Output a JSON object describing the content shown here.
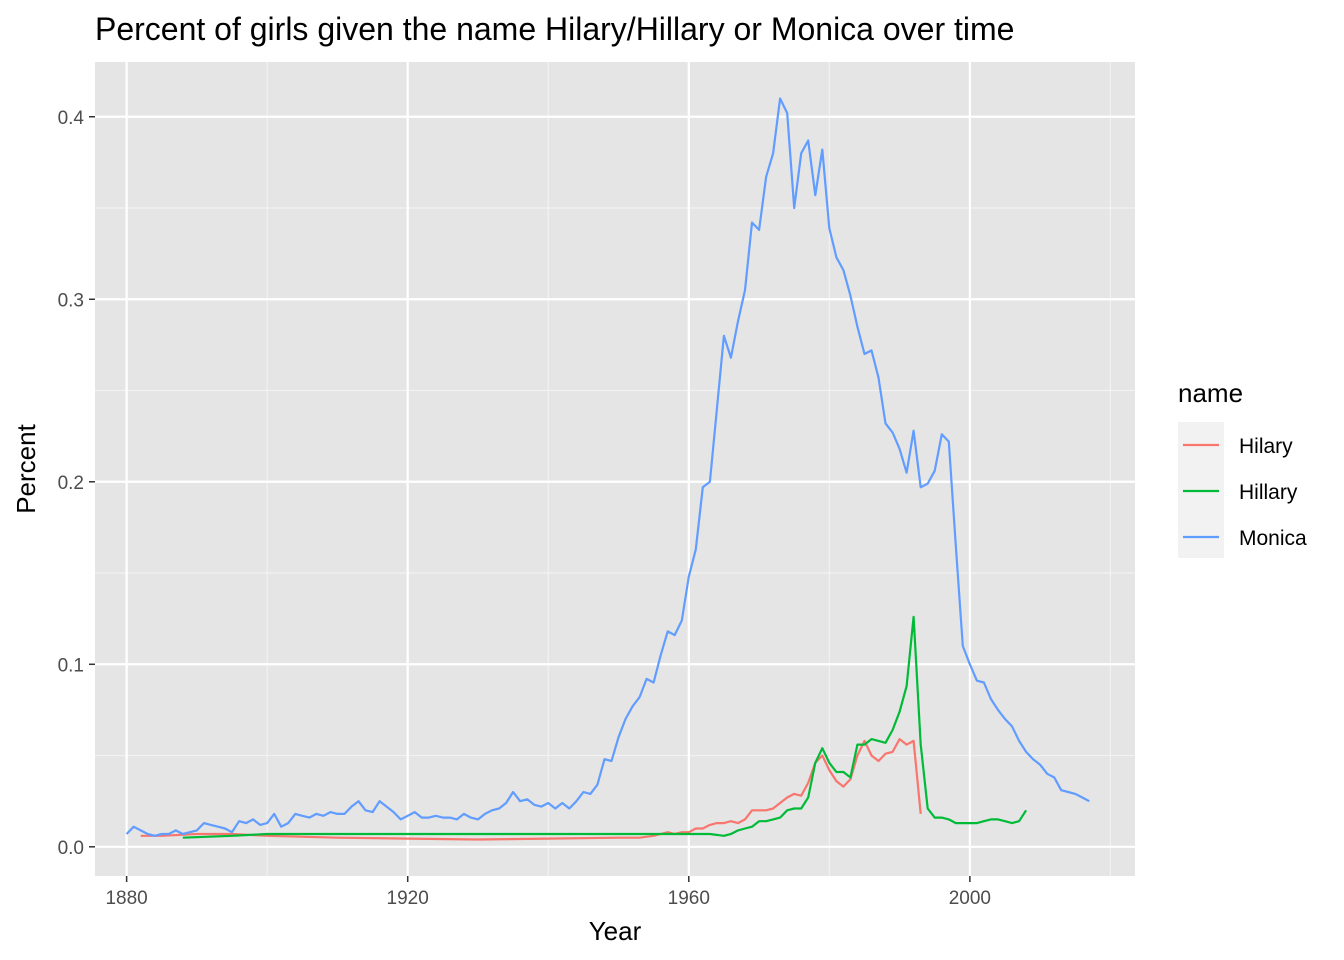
{
  "chart_data": {
    "type": "line",
    "title": "Percent of girls given the name Hilary/Hillary or Monica over time",
    "xlabel": "Year",
    "ylabel": "Percent",
    "xlim": [
      1875.5,
      2023.5
    ],
    "ylim": [
      -0.016,
      0.43
    ],
    "x_ticks": [
      1880,
      1920,
      1960,
      2000
    ],
    "x_tick_labels": [
      "1880",
      "1920",
      "1960",
      "2000"
    ],
    "x_minor_ticks": [
      1900,
      1940,
      1980,
      2020
    ],
    "y_ticks": [
      0.0,
      0.1,
      0.2,
      0.3,
      0.4
    ],
    "y_tick_labels": [
      "0.0",
      "0.1",
      "0.2",
      "0.3",
      "0.4"
    ],
    "y_minor_ticks": [
      0.05,
      0.15,
      0.25,
      0.35
    ],
    "grid": true,
    "background": "#e5e5e5",
    "legend": {
      "title": "name",
      "position": "right"
    },
    "series": [
      {
        "name": "Hilary",
        "color": "#f8766d",
        "x": [
          1882,
          1885,
          1890,
          1895,
          1900,
          1910,
          1920,
          1930,
          1940,
          1950,
          1953,
          1955,
          1957,
          1958,
          1959,
          1960,
          1961,
          1962,
          1963,
          1964,
          1965,
          1966,
          1967,
          1968,
          1969,
          1970,
          1971,
          1972,
          1973,
          1974,
          1975,
          1976,
          1977,
          1978,
          1979,
          1980,
          1981,
          1982,
          1983,
          1984,
          1985,
          1986,
          1987,
          1988,
          1989,
          1990,
          1991,
          1992,
          1993
        ],
        "y": [
          0.006,
          0.006,
          0.007,
          0.007,
          0.006,
          0.005,
          0.0045,
          0.004,
          0.0045,
          0.005,
          0.005,
          0.006,
          0.008,
          0.007,
          0.008,
          0.008,
          0.01,
          0.01,
          0.012,
          0.013,
          0.013,
          0.014,
          0.013,
          0.015,
          0.02,
          0.02,
          0.02,
          0.021,
          0.024,
          0.027,
          0.029,
          0.028,
          0.035,
          0.046,
          0.05,
          0.042,
          0.036,
          0.033,
          0.037,
          0.05,
          0.058,
          0.05,
          0.047,
          0.051,
          0.052,
          0.059,
          0.056,
          0.058,
          0.018
        ]
      },
      {
        "name": "Hillary",
        "color": "#00ba38",
        "x": [
          1888,
          1895,
          1900,
          1920,
          1940,
          1960,
          1963,
          1965,
          1966,
          1967,
          1968,
          1969,
          1970,
          1971,
          1972,
          1973,
          1974,
          1975,
          1976,
          1977,
          1978,
          1979,
          1980,
          1981,
          1982,
          1983,
          1984,
          1985,
          1986,
          1987,
          1988,
          1989,
          1990,
          1991,
          1992,
          1993,
          1994,
          1995,
          1996,
          1997,
          1998,
          1999,
          2000,
          2001,
          2002,
          2003,
          2004,
          2005,
          2006,
          2007,
          2008
        ],
        "y": [
          0.005,
          0.006,
          0.007,
          0.007,
          0.007,
          0.007,
          0.007,
          0.006,
          0.007,
          0.009,
          0.01,
          0.011,
          0.014,
          0.014,
          0.015,
          0.016,
          0.02,
          0.021,
          0.021,
          0.027,
          0.046,
          0.054,
          0.046,
          0.041,
          0.041,
          0.038,
          0.056,
          0.056,
          0.059,
          0.058,
          0.057,
          0.064,
          0.074,
          0.088,
          0.126,
          0.056,
          0.021,
          0.016,
          0.016,
          0.015,
          0.013,
          0.013,
          0.013,
          0.013,
          0.014,
          0.015,
          0.015,
          0.014,
          0.013,
          0.014,
          0.02
        ]
      },
      {
        "name": "Monica",
        "color": "#619cff",
        "x": [
          1880,
          1881,
          1882,
          1883,
          1884,
          1885,
          1886,
          1887,
          1888,
          1889,
          1890,
          1891,
          1892,
          1893,
          1894,
          1895,
          1896,
          1897,
          1898,
          1899,
          1900,
          1901,
          1902,
          1903,
          1904,
          1905,
          1906,
          1907,
          1908,
          1909,
          1910,
          1911,
          1912,
          1913,
          1914,
          1915,
          1916,
          1917,
          1918,
          1919,
          1920,
          1921,
          1922,
          1923,
          1924,
          1925,
          1926,
          1927,
          1928,
          1929,
          1930,
          1931,
          1932,
          1933,
          1934,
          1935,
          1936,
          1937,
          1938,
          1939,
          1940,
          1941,
          1942,
          1943,
          1944,
          1945,
          1946,
          1947,
          1948,
          1949,
          1950,
          1951,
          1952,
          1953,
          1954,
          1955,
          1956,
          1957,
          1958,
          1959,
          1960,
          1961,
          1962,
          1963,
          1964,
          1965,
          1966,
          1967,
          1968,
          1969,
          1970,
          1971,
          1972,
          1973,
          1974,
          1975,
          1976,
          1977,
          1978,
          1979,
          1980,
          1981,
          1982,
          1983,
          1984,
          1985,
          1986,
          1987,
          1988,
          1989,
          1990,
          1991,
          1992,
          1993,
          1994,
          1995,
          1996,
          1997,
          1998,
          1999,
          2000,
          2001,
          2002,
          2003,
          2004,
          2005,
          2006,
          2007,
          2008,
          2009,
          2010,
          2011,
          2012,
          2013,
          2014,
          2015,
          2016,
          2017
        ],
        "y": [
          0.007,
          0.011,
          0.009,
          0.007,
          0.006,
          0.007,
          0.007,
          0.009,
          0.007,
          0.008,
          0.009,
          0.013,
          0.012,
          0.011,
          0.01,
          0.008,
          0.014,
          0.013,
          0.015,
          0.012,
          0.013,
          0.018,
          0.011,
          0.013,
          0.018,
          0.017,
          0.016,
          0.018,
          0.017,
          0.019,
          0.018,
          0.018,
          0.022,
          0.025,
          0.02,
          0.019,
          0.025,
          0.022,
          0.019,
          0.015,
          0.017,
          0.019,
          0.016,
          0.016,
          0.017,
          0.016,
          0.016,
          0.015,
          0.018,
          0.016,
          0.015,
          0.018,
          0.02,
          0.021,
          0.024,
          0.03,
          0.025,
          0.026,
          0.023,
          0.022,
          0.024,
          0.021,
          0.024,
          0.021,
          0.025,
          0.03,
          0.029,
          0.034,
          0.048,
          0.047,
          0.06,
          0.07,
          0.077,
          0.082,
          0.092,
          0.09,
          0.105,
          0.118,
          0.116,
          0.124,
          0.148,
          0.163,
          0.197,
          0.2,
          0.24,
          0.28,
          0.268,
          0.288,
          0.305,
          0.342,
          0.338,
          0.367,
          0.38,
          0.41,
          0.402,
          0.35,
          0.38,
          0.387,
          0.357,
          0.382,
          0.339,
          0.323,
          0.316,
          0.302,
          0.285,
          0.27,
          0.272,
          0.257,
          0.232,
          0.227,
          0.218,
          0.205,
          0.228,
          0.197,
          0.199,
          0.206,
          0.226,
          0.222,
          0.165,
          0.11,
          0.1,
          0.091,
          0.09,
          0.081,
          0.075,
          0.07,
          0.066,
          0.058,
          0.052,
          0.048,
          0.045,
          0.04,
          0.038,
          0.031,
          0.03,
          0.029,
          0.027,
          0.025
        ]
      }
    ]
  }
}
